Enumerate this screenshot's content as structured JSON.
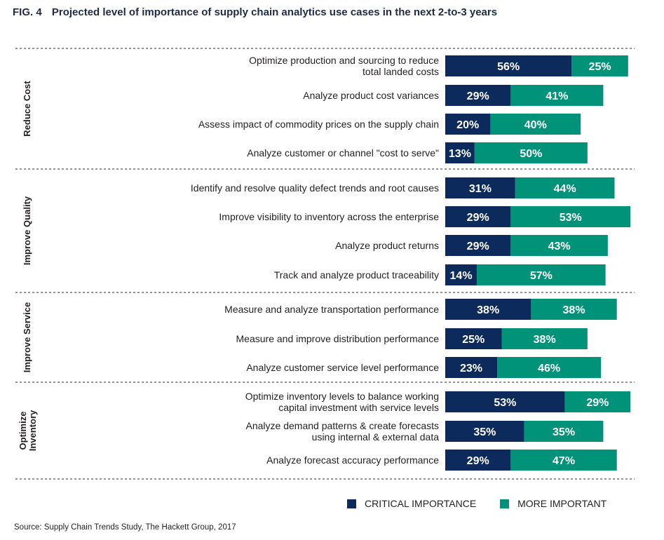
{
  "figure": {
    "label": "FIG. 4",
    "title": "Projected level of importance of supply chain analytics use cases in the next 2-to-3 years"
  },
  "source": "Source: Supply Chain Trends Study, The Hackett Group, 2017",
  "colors": {
    "critical": "#0d2a5c",
    "more": "#00937a"
  },
  "chart_data": {
    "type": "bar",
    "orientation": "horizontal",
    "stacked": true,
    "legend_position": "bottom-right",
    "xlim": [
      0,
      82
    ],
    "series": [
      {
        "name": "CRITICAL IMPORTANCE",
        "key": "critical"
      },
      {
        "name": "MORE IMPORTANT",
        "key": "more"
      }
    ],
    "groups": [
      {
        "name": "Reduce Cost",
        "items": [
          {
            "label": [
              "Optimize production and sourcing to reduce",
              "total landed costs"
            ],
            "critical": 56,
            "more": 25
          },
          {
            "label": [
              "Analyze product cost variances"
            ],
            "critical": 29,
            "more": 41
          },
          {
            "label": [
              "Assess impact of commodity prices on the supply chain"
            ],
            "critical": 20,
            "more": 40
          },
          {
            "label": [
              "Analyze customer or channel \"cost to serve\""
            ],
            "critical": 13,
            "more": 50
          }
        ]
      },
      {
        "name": "Improve Quality",
        "items": [
          {
            "label": [
              "Identify and resolve quality defect trends and root causes"
            ],
            "critical": 31,
            "more": 44
          },
          {
            "label": [
              "Improve visibility to inventory across the enterprise"
            ],
            "critical": 29,
            "more": 53
          },
          {
            "label": [
              "Analyze product returns"
            ],
            "critical": 29,
            "more": 43
          },
          {
            "label": [
              "Track and analyze product traceability"
            ],
            "critical": 14,
            "more": 57
          }
        ]
      },
      {
        "name": "Improve Service",
        "items": [
          {
            "label": [
              "Measure and analyze transportation performance"
            ],
            "critical": 38,
            "more": 38
          },
          {
            "label": [
              "Measure and improve distribution performance"
            ],
            "critical": 25,
            "more": 38
          },
          {
            "label": [
              "Analyze customer service level performance"
            ],
            "critical": 23,
            "more": 46
          }
        ]
      },
      {
        "name": "Optimize Inventory",
        "name_lines": [
          "Optimize",
          "Inventory"
        ],
        "items": [
          {
            "label": [
              "Optimize inventory levels to balance working",
              "capital investment with service levels"
            ],
            "critical": 53,
            "more": 29
          },
          {
            "label": [
              "Analyze demand patterns & create forecasts",
              "using internal & external data"
            ],
            "critical": 35,
            "more": 35
          },
          {
            "label": [
              "Analyze forecast accuracy performance"
            ],
            "critical": 29,
            "more": 47
          }
        ]
      }
    ]
  }
}
